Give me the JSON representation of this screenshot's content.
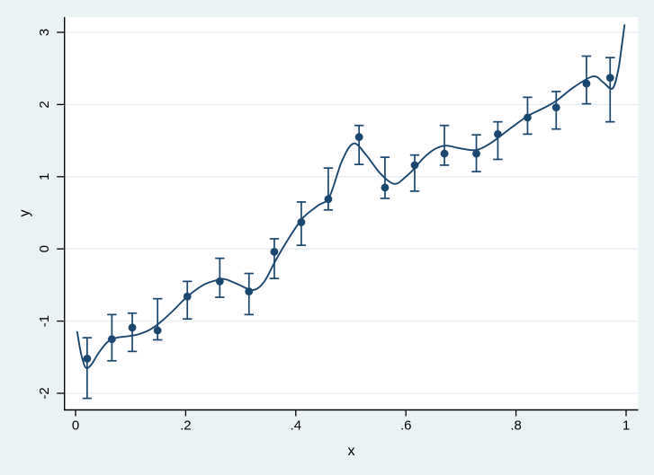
{
  "chart_data": {
    "type": "scatter",
    "title": "",
    "xlabel": "x",
    "ylabel": "y",
    "xlim": [
      -0.02,
      1.02
    ],
    "ylim": [
      -2.23,
      3.21
    ],
    "grid": "horizontal",
    "legend": "none",
    "x_ticks": [
      {
        "value": 0,
        "label": "0"
      },
      {
        "value": 0.2,
        "label": ".2"
      },
      {
        "value": 0.4,
        "label": ".4"
      },
      {
        "value": 0.6,
        "label": ".6"
      },
      {
        "value": 0.8,
        "label": ".8"
      },
      {
        "value": 1,
        "label": "1"
      }
    ],
    "y_ticks": [
      {
        "value": -2,
        "label": "-2"
      },
      {
        "value": -1,
        "label": "-1"
      },
      {
        "value": 0,
        "label": "0"
      },
      {
        "value": 1,
        "label": "1"
      },
      {
        "value": 2,
        "label": "2"
      },
      {
        "value": 3,
        "label": "3"
      }
    ],
    "series": [
      {
        "name": "observations-with-confidence-intervals",
        "type": "scatter+errorbar",
        "points": [
          {
            "x": 0.021,
            "y": -1.52,
            "lo": -2.07,
            "hi": -1.23
          },
          {
            "x": 0.066,
            "y": -1.25,
            "lo": -1.55,
            "hi": -0.91
          },
          {
            "x": 0.103,
            "y": -1.09,
            "lo": -1.42,
            "hi": -0.89
          },
          {
            "x": 0.149,
            "y": -1.13,
            "lo": -1.26,
            "hi": -0.69
          },
          {
            "x": 0.203,
            "y": -0.66,
            "lo": -0.97,
            "hi": -0.45
          },
          {
            "x": 0.262,
            "y": -0.45,
            "lo": -0.67,
            "hi": -0.13
          },
          {
            "x": 0.315,
            "y": -0.59,
            "lo": -0.91,
            "hi": -0.34
          },
          {
            "x": 0.361,
            "y": -0.04,
            "lo": -0.41,
            "hi": 0.14
          },
          {
            "x": 0.41,
            "y": 0.37,
            "lo": 0.05,
            "hi": 0.65
          },
          {
            "x": 0.459,
            "y": 0.69,
            "lo": 0.54,
            "hi": 1.12
          },
          {
            "x": 0.515,
            "y": 1.55,
            "lo": 1.17,
            "hi": 1.71
          },
          {
            "x": 0.562,
            "y": 0.85,
            "lo": 0.7,
            "hi": 1.27
          },
          {
            "x": 0.616,
            "y": 1.16,
            "lo": 0.8,
            "hi": 1.3
          },
          {
            "x": 0.67,
            "y": 1.32,
            "lo": 1.16,
            "hi": 1.71
          },
          {
            "x": 0.728,
            "y": 1.32,
            "lo": 1.07,
            "hi": 1.58
          },
          {
            "x": 0.767,
            "y": 1.59,
            "lo": 1.24,
            "hi": 1.76
          },
          {
            "x": 0.821,
            "y": 1.82,
            "lo": 1.59,
            "hi": 2.1
          },
          {
            "x": 0.873,
            "y": 1.96,
            "lo": 1.66,
            "hi": 2.18
          },
          {
            "x": 0.928,
            "y": 2.29,
            "lo": 2.01,
            "hi": 2.67
          },
          {
            "x": 0.971,
            "y": 2.37,
            "lo": 1.76,
            "hi": 2.65
          }
        ]
      },
      {
        "name": "smooth-fit-line",
        "type": "line",
        "points": [
          [
            0.003,
            -1.15
          ],
          [
            0.01,
            -1.45
          ],
          [
            0.018,
            -1.64
          ],
          [
            0.028,
            -1.61
          ],
          [
            0.042,
            -1.44
          ],
          [
            0.058,
            -1.29
          ],
          [
            0.075,
            -1.23
          ],
          [
            0.095,
            -1.21
          ],
          [
            0.115,
            -1.18
          ],
          [
            0.135,
            -1.12
          ],
          [
            0.155,
            -1.01
          ],
          [
            0.178,
            -0.85
          ],
          [
            0.203,
            -0.66
          ],
          [
            0.232,
            -0.5
          ],
          [
            0.258,
            -0.43
          ],
          [
            0.272,
            -0.42
          ],
          [
            0.295,
            -0.49
          ],
          [
            0.322,
            -0.57
          ],
          [
            0.342,
            -0.46
          ],
          [
            0.362,
            -0.18
          ],
          [
            0.385,
            0.12
          ],
          [
            0.412,
            0.42
          ],
          [
            0.44,
            0.6
          ],
          [
            0.461,
            0.72
          ],
          [
            0.484,
            1.22
          ],
          [
            0.505,
            1.46
          ],
          [
            0.528,
            1.3
          ],
          [
            0.553,
            1.05
          ],
          [
            0.579,
            0.9
          ],
          [
            0.6,
            1.0
          ],
          [
            0.616,
            1.12
          ],
          [
            0.632,
            1.26
          ],
          [
            0.652,
            1.38
          ],
          [
            0.672,
            1.43
          ],
          [
            0.7,
            1.39
          ],
          [
            0.728,
            1.37
          ],
          [
            0.755,
            1.47
          ],
          [
            0.79,
            1.67
          ],
          [
            0.821,
            1.84
          ],
          [
            0.85,
            1.95
          ],
          [
            0.873,
            2.05
          ],
          [
            0.905,
            2.24
          ],
          [
            0.94,
            2.39
          ],
          [
            0.958,
            2.31
          ],
          [
            0.975,
            2.22
          ],
          [
            0.985,
            2.45
          ],
          [
            0.991,
            2.75
          ],
          [
            0.997,
            3.1
          ]
        ]
      }
    ],
    "colors": {
      "marker": "#1a476f",
      "line": "#1a476f",
      "error_bar": "#1a476f",
      "plot_background": "#ffffff",
      "outer_background": "#eaf2f3",
      "gridline": "#e4edf2",
      "axis": "#000000"
    }
  }
}
